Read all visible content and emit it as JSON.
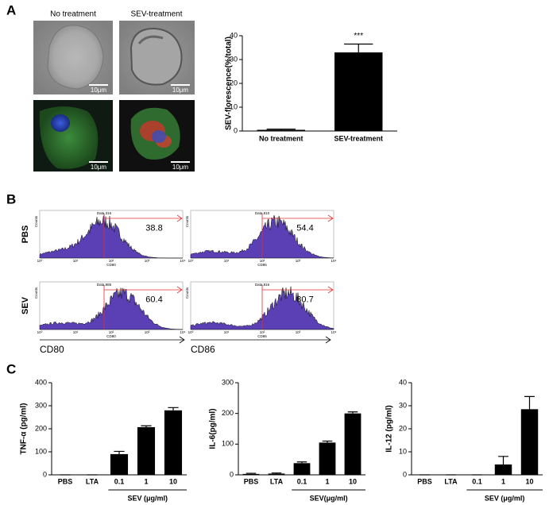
{
  "panel_labels": [
    "A",
    "B",
    "C"
  ],
  "microscopy": {
    "column_titles": [
      "No treatment",
      "SEV-treatment"
    ],
    "scale_bar": "10μm"
  },
  "flow_cytometry": {
    "row_labels": [
      "PBS",
      "SEV"
    ],
    "axis_titles": [
      "CD80",
      "CD86"
    ],
    "y_axis_label": "Counts",
    "x_tick_labels": [
      "10⁰",
      "10¹",
      "10²",
      "10³",
      "10⁴"
    ],
    "gates": [
      [
        "Data.316",
        "Data.810"
      ],
      [
        "Data.885",
        "Data.816"
      ]
    ],
    "percents": [
      [
        "38.8",
        "54.4"
      ],
      [
        "60.4",
        "80.7"
      ]
    ]
  },
  "chart_data": [
    {
      "type": "bar",
      "ylabel": "SEV-florescence(%/total)",
      "categories": [
        "No treatment",
        "SEV-treatment"
      ],
      "values": [
        0.5,
        33
      ],
      "errors": [
        0.3,
        3.5
      ],
      "color": "#000000",
      "ylim": [
        0,
        40
      ],
      "yticks": [
        0,
        10,
        20,
        30,
        40
      ],
      "annotation": "***"
    },
    {
      "type": "bar",
      "ylabel": "TNF-α (pg/ml)",
      "categories": [
        "PBS",
        "LTA",
        "0.1",
        "1",
        "10"
      ],
      "values": [
        0,
        0,
        90,
        207,
        280
      ],
      "errors": [
        0,
        0,
        12,
        6,
        12
      ],
      "color": "#000000",
      "ylim": [
        0,
        400
      ],
      "yticks": [
        0,
        100,
        200,
        300,
        400
      ],
      "group_label": "SEV (μg/ml)"
    },
    {
      "type": "bar",
      "ylabel": "IL-6(pg/ml)",
      "categories": [
        "PBS",
        "LTA",
        "0.1",
        "1",
        "10"
      ],
      "values": [
        3,
        4,
        38,
        105,
        200
      ],
      "errors": [
        2,
        2,
        4,
        5,
        5
      ],
      "color": "#000000",
      "ylim": [
        0,
        300
      ],
      "yticks": [
        0,
        100,
        200,
        300
      ],
      "group_label": "SEV(μg/ml)"
    },
    {
      "type": "bar",
      "ylabel": "IL-12 (pg/ml)",
      "categories": [
        "PBS",
        "LTA",
        "0.1",
        "1",
        "10"
      ],
      "values": [
        0,
        0,
        0,
        4.5,
        28.5
      ],
      "errors": [
        0,
        0,
        0,
        3.5,
        5.5
      ],
      "color": "#000000",
      "ylim": [
        0,
        40
      ],
      "yticks": [
        0,
        10,
        20,
        30,
        40
      ],
      "group_label": "SEV (μg/ml)"
    }
  ]
}
